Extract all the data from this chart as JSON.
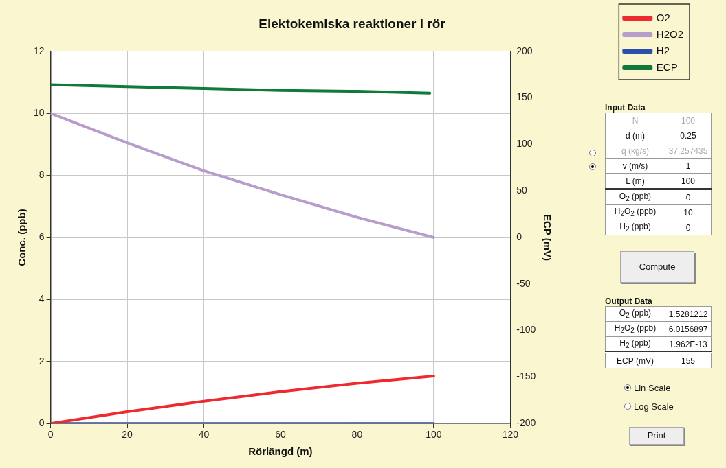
{
  "chart_data": [
    {
      "type": "line",
      "title": "Elektokemiska reaktioner i rör",
      "xlabel": "Rörlängd (m)",
      "ylabel": "Conc. (ppb)",
      "y2label": "ECP (mV)",
      "x": [
        0,
        20,
        40,
        60,
        80,
        100
      ],
      "series": [
        {
          "name": "O2",
          "color": "#ee2a2f",
          "values": [
            0,
            0.38,
            0.72,
            1.03,
            1.3,
            1.53
          ]
        },
        {
          "name": "H2O2",
          "color": "#b79ccc",
          "values": [
            10,
            9.05,
            8.15,
            7.38,
            6.65,
            6.0
          ]
        },
        {
          "name": "H2",
          "color": "#2a4fa8",
          "values": [
            0,
            0,
            0,
            0,
            0,
            0
          ]
        },
        {
          "name": "ECP",
          "color": "#0f7a3a",
          "axis": "y2",
          "x": [
            0,
            20,
            40,
            60,
            80,
            99
          ],
          "values": [
            164,
            162,
            160,
            158,
            157,
            155
          ]
        }
      ],
      "xlim": [
        0,
        120
      ],
      "xticks": [
        0,
        20,
        40,
        60,
        80,
        100,
        120
      ],
      "ylim": [
        0,
        12
      ],
      "yticks": [
        0,
        2,
        4,
        6,
        8,
        10,
        12
      ],
      "y2lim": [
        -200,
        200
      ],
      "y2ticks": [
        -200,
        -150,
        -100,
        -50,
        0,
        50,
        100,
        150,
        200
      ],
      "grid": true,
      "legend": "top right",
      "marker": "none",
      "line_style": "solid"
    },
    {
      "type": "other",
      "annotations": [
        "Input Data",
        "N",
        "100",
        "d (m)",
        "0.25",
        "q (kg/s)",
        "37.257435",
        "v (m/s)",
        "1",
        "L (m)",
        "100",
        "O$_{2}$ (ppb)",
        "0",
        "H$_{2}$O$_{2}$ (ppb)",
        "10",
        "H$_{2}$ (ppb)",
        "0",
        "Compute",
        "Output Data",
        "O$_{2}$ (ppb)",
        "1.5281212",
        "H$_{2}$O$_{2}$ (ppb)",
        "6.0156897",
        "H$_{2}$ (ppb)",
        "1.962E-13",
        "ECP (mV)",
        "155",
        "Lin Scale",
        "Log Scale",
        "Print"
      ]
    }
  ]
}
